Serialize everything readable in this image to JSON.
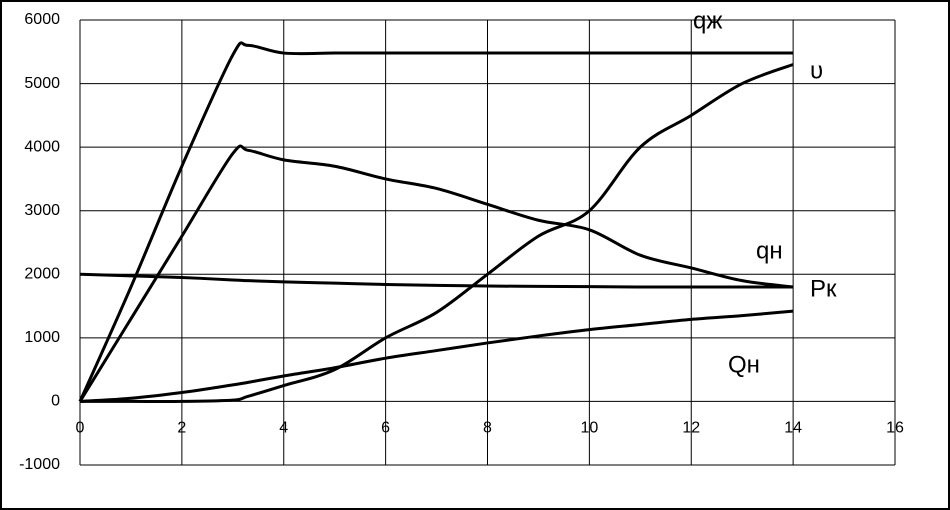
{
  "chart_data": {
    "type": "line",
    "x": [
      0,
      1,
      2,
      3,
      3.3,
      4,
      5,
      6,
      7,
      8,
      9,
      10,
      11,
      12,
      13,
      14
    ],
    "series": [
      {
        "name": "qж",
        "color": "#000000",
        "values": [
          0,
          1800,
          3700,
          5450,
          5600,
          5480,
          5480,
          5480,
          5480,
          5480,
          5480,
          5480,
          5480,
          5480,
          5480,
          5480
        ]
      },
      {
        "name": "υ",
        "color": "#000000",
        "values": [
          0,
          0,
          0,
          20,
          80,
          250,
          500,
          1000,
          1400,
          2000,
          2600,
          3000,
          4000,
          4500,
          5000,
          5300
        ]
      },
      {
        "name": "qн",
        "color": "#000000",
        "values": [
          0,
          1300,
          2600,
          3900,
          3950,
          3800,
          3700,
          3500,
          3350,
          3100,
          2850,
          2700,
          2300,
          2100,
          1900,
          1800
        ]
      },
      {
        "name": "Pк",
        "color": "#000000",
        "values": [
          2000,
          1975,
          1950,
          1910,
          1900,
          1880,
          1860,
          1840,
          1825,
          1815,
          1810,
          1805,
          1800,
          1800,
          1800,
          1800
        ]
      },
      {
        "name": "Qн",
        "color": "#000000",
        "values": [
          0,
          50,
          140,
          260,
          300,
          400,
          530,
          680,
          800,
          920,
          1030,
          1130,
          1210,
          1290,
          1350,
          1420
        ]
      }
    ],
    "xlim": [
      0,
      16
    ],
    "xticks": [
      0,
      2,
      4,
      6,
      8,
      10,
      12,
      14,
      16
    ],
    "ylim": [
      -1000,
      6000
    ],
    "yticks": [
      -1000,
      0,
      1000,
      2000,
      3000,
      4000,
      5000,
      6000
    ],
    "grid": true
  }
}
